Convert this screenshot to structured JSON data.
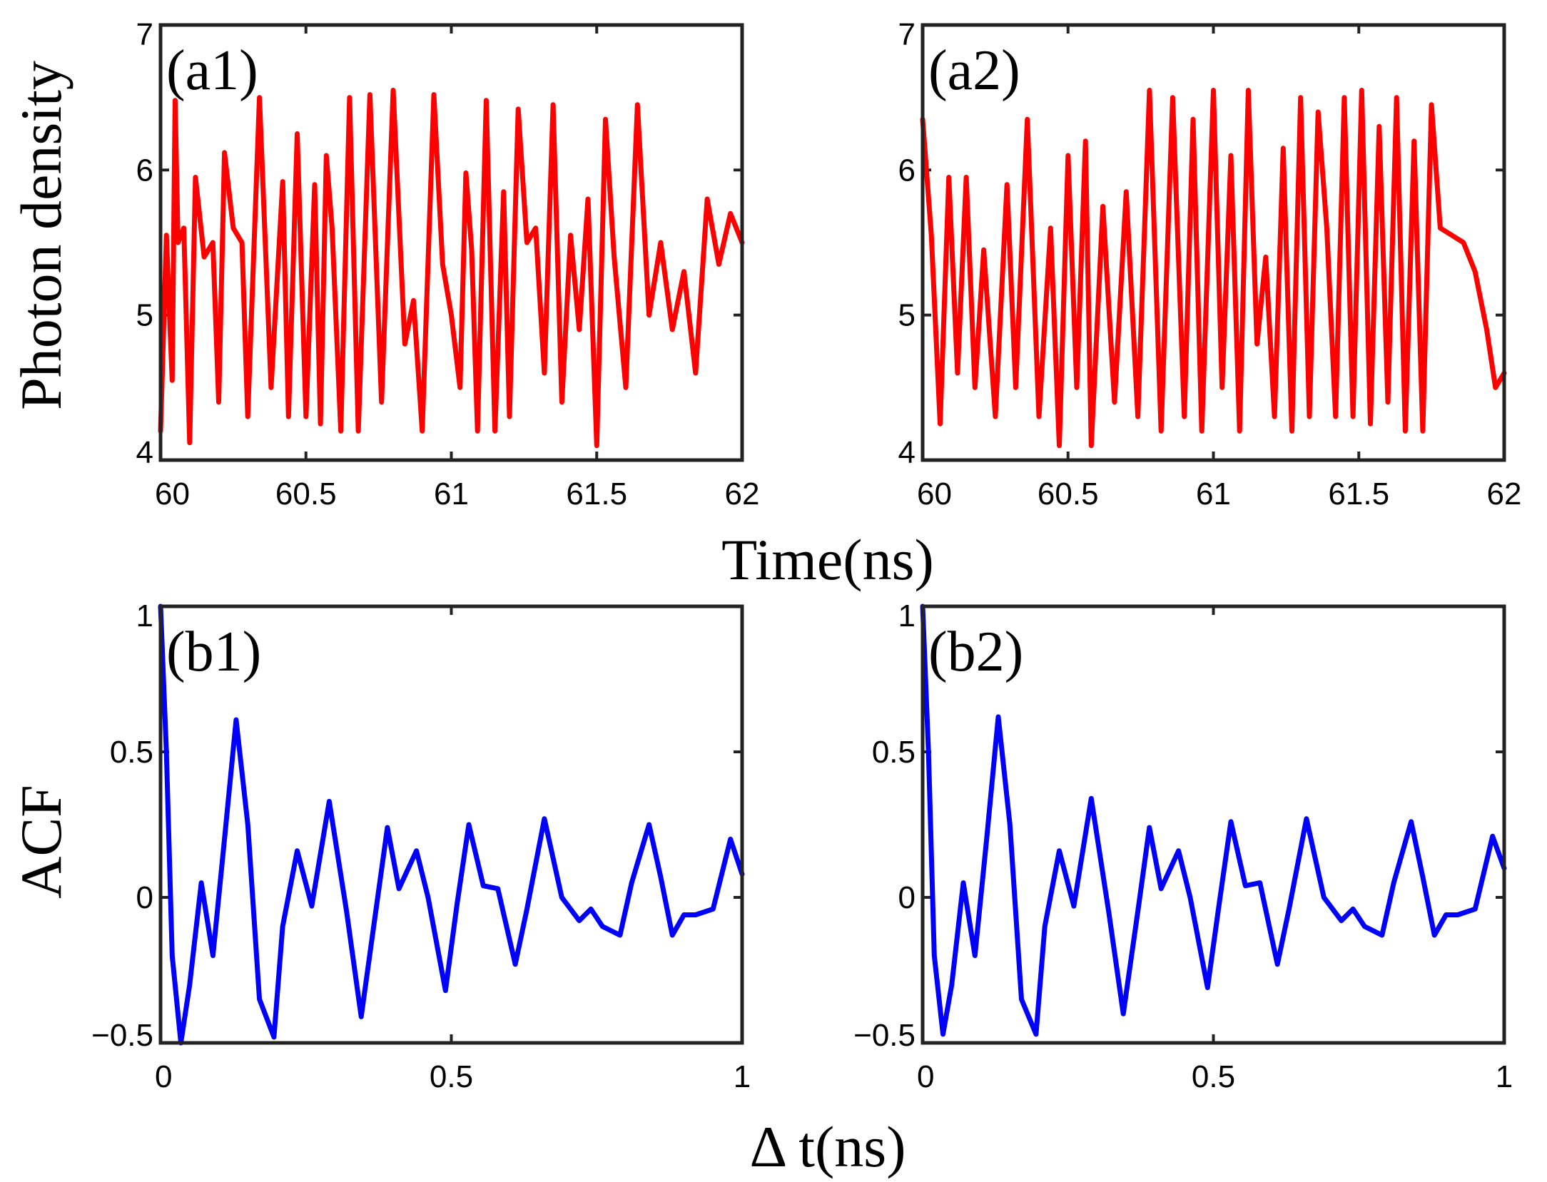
{
  "figure": {
    "ylabel_top": "Photon density",
    "xlabel_top": "Time(ns)",
    "ylabel_bottom": "ACF",
    "xlabel_bottom": "Δ t(ns)"
  },
  "chart_data": [
    {
      "type": "line",
      "panel_label": "(a1)",
      "title": "",
      "xlabel": "Time(ns)",
      "ylabel": "Photon density",
      "xlim": [
        60,
        62
      ],
      "ylim": [
        4,
        7
      ],
      "xticks": [
        60,
        60.5,
        61,
        61.5,
        62
      ],
      "xtick_labels": [
        "60",
        "60.5",
        "61",
        "61.5",
        "62"
      ],
      "yticks": [
        4,
        5,
        6,
        7
      ],
      "ytick_labels": [
        "4",
        "5",
        "6",
        "7"
      ],
      "grid": false,
      "color": "#ff0000",
      "series": [
        {
          "name": "a1",
          "x": [
            60.0,
            60.02,
            60.04,
            60.05,
            60.06,
            60.08,
            60.1,
            60.12,
            60.15,
            60.18,
            60.2,
            60.22,
            60.25,
            60.28,
            60.3,
            60.34,
            60.38,
            60.42,
            60.44,
            60.47,
            60.5,
            60.53,
            60.55,
            60.57,
            60.59,
            60.62,
            60.65,
            60.68,
            60.72,
            60.76,
            60.8,
            60.84,
            60.87,
            60.9,
            60.94,
            60.97,
            61.0,
            61.03,
            61.05,
            61.07,
            61.09,
            61.12,
            61.15,
            61.18,
            61.2,
            61.23,
            61.26,
            61.29,
            61.32,
            61.35,
            61.38,
            61.41,
            61.44,
            61.47,
            61.5,
            61.53,
            61.56,
            61.6,
            61.64,
            61.68,
            61.72,
            61.76,
            61.8,
            61.84,
            61.88,
            61.92,
            61.96,
            62.0
          ],
          "y": [
            4.2,
            5.55,
            4.55,
            6.48,
            5.5,
            5.6,
            4.12,
            5.95,
            5.4,
            5.5,
            4.4,
            6.12,
            5.6,
            5.5,
            4.3,
            6.5,
            4.5,
            5.92,
            4.3,
            6.25,
            4.3,
            5.9,
            4.25,
            6.1,
            5.6,
            4.2,
            6.5,
            4.2,
            6.52,
            4.4,
            6.55,
            4.8,
            5.1,
            4.2,
            6.52,
            5.35,
            5.0,
            4.5,
            5.98,
            5.45,
            4.2,
            6.48,
            4.2,
            5.85,
            4.3,
            6.42,
            5.5,
            5.6,
            4.6,
            6.45,
            4.4,
            5.55,
            4.9,
            5.8,
            4.1,
            6.35,
            5.4,
            4.5,
            6.45,
            5.0,
            5.5,
            4.9,
            5.3,
            4.6,
            5.8,
            5.35,
            5.7,
            5.5
          ]
        }
      ]
    },
    {
      "type": "line",
      "panel_label": "(a2)",
      "title": "",
      "xlabel": "Time(ns)",
      "ylabel": "",
      "xlim": [
        60,
        62
      ],
      "ylim": [
        4,
        7
      ],
      "xticks": [
        60,
        60.5,
        61,
        61.5,
        62
      ],
      "xtick_labels": [
        "60",
        "60.5",
        "61",
        "61.5",
        "62"
      ],
      "yticks": [
        4,
        5,
        6,
        7
      ],
      "ytick_labels": [
        "4",
        "5",
        "6",
        "7"
      ],
      "grid": false,
      "color": "#ff0000",
      "series": [
        {
          "name": "a2",
          "x": [
            60.0,
            60.03,
            60.06,
            60.09,
            60.12,
            60.15,
            60.18,
            60.21,
            60.25,
            60.29,
            60.32,
            60.36,
            60.4,
            60.44,
            60.47,
            60.5,
            60.53,
            60.56,
            60.58,
            60.62,
            60.66,
            60.7,
            60.74,
            60.78,
            60.82,
            60.86,
            60.9,
            60.93,
            60.96,
            61.0,
            61.03,
            61.06,
            61.09,
            61.12,
            61.15,
            61.18,
            61.21,
            61.24,
            61.27,
            61.3,
            61.33,
            61.36,
            61.39,
            61.42,
            61.45,
            61.48,
            61.51,
            61.54,
            61.57,
            61.6,
            61.63,
            61.66,
            61.69,
            61.72,
            61.75,
            61.78,
            61.82,
            61.86,
            61.9,
            61.94,
            61.97,
            62.0
          ],
          "y": [
            6.35,
            5.55,
            4.25,
            5.95,
            4.6,
            5.95,
            4.5,
            5.45,
            4.3,
            5.9,
            4.5,
            6.35,
            4.3,
            5.6,
            4.1,
            6.1,
            4.5,
            6.2,
            4.1,
            5.75,
            4.4,
            5.85,
            4.3,
            6.55,
            4.2,
            6.5,
            4.3,
            6.35,
            4.2,
            6.55,
            4.5,
            6.1,
            4.2,
            6.55,
            4.8,
            5.4,
            4.3,
            6.15,
            4.2,
            6.5,
            4.3,
            6.4,
            5.6,
            4.3,
            6.5,
            4.3,
            6.55,
            4.25,
            6.3,
            4.4,
            6.5,
            4.2,
            6.2,
            4.2,
            6.45,
            5.6,
            5.55,
            5.5,
            5.3,
            4.9,
            4.5,
            4.6
          ]
        }
      ]
    },
    {
      "type": "line",
      "panel_label": "(b1)",
      "title": "",
      "xlabel": "Δ t(ns)",
      "ylabel": "ACF",
      "xlim": [
        0,
        1
      ],
      "ylim": [
        -0.5,
        1
      ],
      "xticks": [
        0,
        0.5,
        1
      ],
      "xtick_labels": [
        "0",
        "0.5",
        "1"
      ],
      "yticks": [
        -0.5,
        0,
        0.5,
        1
      ],
      "ytick_labels": [
        "−0.5",
        "0",
        "0.5",
        "1"
      ],
      "grid": false,
      "color": "#0000ff",
      "series": [
        {
          "name": "b1",
          "x": [
            0.0,
            0.01,
            0.02,
            0.035,
            0.05,
            0.07,
            0.09,
            0.11,
            0.13,
            0.15,
            0.17,
            0.195,
            0.21,
            0.235,
            0.26,
            0.29,
            0.32,
            0.345,
            0.37,
            0.39,
            0.41,
            0.44,
            0.46,
            0.49,
            0.51,
            0.53,
            0.555,
            0.58,
            0.61,
            0.63,
            0.66,
            0.69,
            0.72,
            0.74,
            0.76,
            0.79,
            0.81,
            0.84,
            0.86,
            0.88,
            0.9,
            0.92,
            0.95,
            0.98,
            1.0
          ],
          "y": [
            1.0,
            0.5,
            -0.2,
            -0.5,
            -0.3,
            0.05,
            -0.2,
            0.2,
            0.61,
            0.25,
            -0.35,
            -0.48,
            -0.1,
            0.16,
            -0.03,
            0.33,
            -0.05,
            -0.41,
            -0.05,
            0.24,
            0.03,
            0.16,
            0.0,
            -0.32,
            -0.02,
            0.25,
            0.04,
            0.03,
            -0.23,
            -0.04,
            0.27,
            0.0,
            -0.08,
            -0.04,
            -0.1,
            -0.13,
            0.05,
            0.25,
            0.07,
            -0.13,
            -0.06,
            -0.06,
            -0.04,
            0.2,
            0.08
          ]
        }
      ]
    },
    {
      "type": "line",
      "panel_label": "(b2)",
      "title": "",
      "xlabel": "Δ t(ns)",
      "ylabel": "",
      "xlim": [
        0,
        1
      ],
      "ylim": [
        -0.5,
        1
      ],
      "xticks": [
        0,
        0.5,
        1
      ],
      "xtick_labels": [
        "0",
        "0.5",
        "1"
      ],
      "yticks": [
        -0.5,
        0,
        0.5,
        1
      ],
      "ytick_labels": [
        "−0.5",
        "0",
        "0.5",
        "1"
      ],
      "grid": false,
      "color": "#0000ff",
      "series": [
        {
          "name": "b2",
          "x": [
            0.0,
            0.01,
            0.02,
            0.035,
            0.05,
            0.07,
            0.09,
            0.11,
            0.13,
            0.15,
            0.17,
            0.195,
            0.21,
            0.235,
            0.26,
            0.29,
            0.32,
            0.345,
            0.37,
            0.39,
            0.41,
            0.44,
            0.46,
            0.49,
            0.51,
            0.53,
            0.555,
            0.58,
            0.61,
            0.63,
            0.66,
            0.69,
            0.72,
            0.74,
            0.76,
            0.79,
            0.81,
            0.84,
            0.86,
            0.88,
            0.9,
            0.92,
            0.95,
            0.98,
            1.0
          ],
          "y": [
            1.0,
            0.5,
            -0.2,
            -0.47,
            -0.3,
            0.05,
            -0.2,
            0.2,
            0.62,
            0.25,
            -0.35,
            -0.47,
            -0.1,
            0.16,
            -0.03,
            0.34,
            -0.05,
            -0.4,
            -0.05,
            0.24,
            0.03,
            0.16,
            0.0,
            -0.31,
            -0.02,
            0.26,
            0.04,
            0.05,
            -0.23,
            -0.04,
            0.27,
            0.0,
            -0.08,
            -0.04,
            -0.1,
            -0.13,
            0.05,
            0.26,
            0.07,
            -0.13,
            -0.06,
            -0.06,
            -0.04,
            0.21,
            0.1
          ]
        }
      ]
    }
  ]
}
